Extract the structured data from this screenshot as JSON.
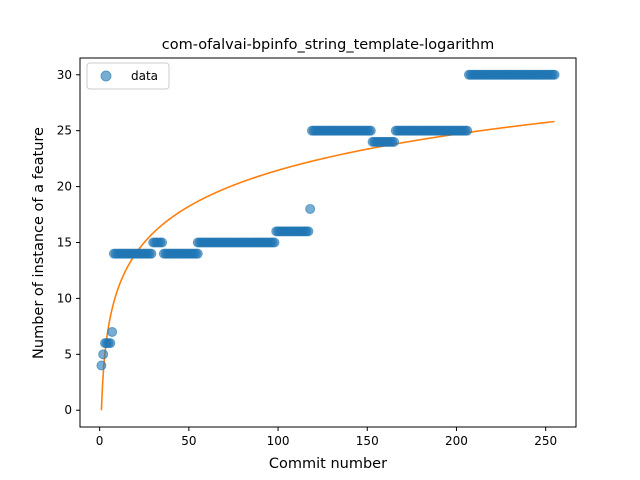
{
  "chart_data": {
    "type": "scatter",
    "title": "com-ofalvai-bpinfo_string_template-logarithm",
    "xlabel": "Commit number",
    "ylabel": "Number of instance of a feature",
    "xlim": [
      -11,
      267
    ],
    "ylim": [
      -1.5,
      31.5
    ],
    "xticks": [
      0,
      50,
      100,
      150,
      200,
      250
    ],
    "yticks": [
      0,
      5,
      10,
      15,
      20,
      25,
      30
    ],
    "grid": false,
    "legend": {
      "position": "top-left",
      "entries": [
        "data"
      ]
    },
    "colors": {
      "scatter": "#1f77b4",
      "fit": "#ff7f0e"
    },
    "series": [
      {
        "name": "data",
        "kind": "scatter",
        "segments": [
          {
            "x_start": 1,
            "x_end": 1,
            "y": 4
          },
          {
            "x_start": 2,
            "x_end": 2,
            "y": 5
          },
          {
            "x_start": 3,
            "x_end": 6,
            "y": 6
          },
          {
            "x_start": 7,
            "x_end": 7,
            "y": 7
          },
          {
            "x_start": 8,
            "x_end": 29,
            "y": 14
          },
          {
            "x_start": 30,
            "x_end": 35,
            "y": 15
          },
          {
            "x_start": 36,
            "x_end": 55,
            "y": 14
          },
          {
            "x_start": 55,
            "x_end": 98,
            "y": 15
          },
          {
            "x_start": 99,
            "x_end": 117,
            "y": 16
          },
          {
            "x_start": 118,
            "x_end": 118,
            "y": 18
          },
          {
            "x_start": 119,
            "x_end": 152,
            "y": 25
          },
          {
            "x_start": 153,
            "x_end": 165,
            "y": 24
          },
          {
            "x_start": 166,
            "x_end": 206,
            "y": 25
          },
          {
            "x_start": 207,
            "x_end": 255,
            "y": 30
          }
        ]
      },
      {
        "kind": "line",
        "fit": {
          "form": "a*ln(x)",
          "a": 4.66,
          "x_start": 1,
          "x_end": 255
        }
      }
    ]
  }
}
